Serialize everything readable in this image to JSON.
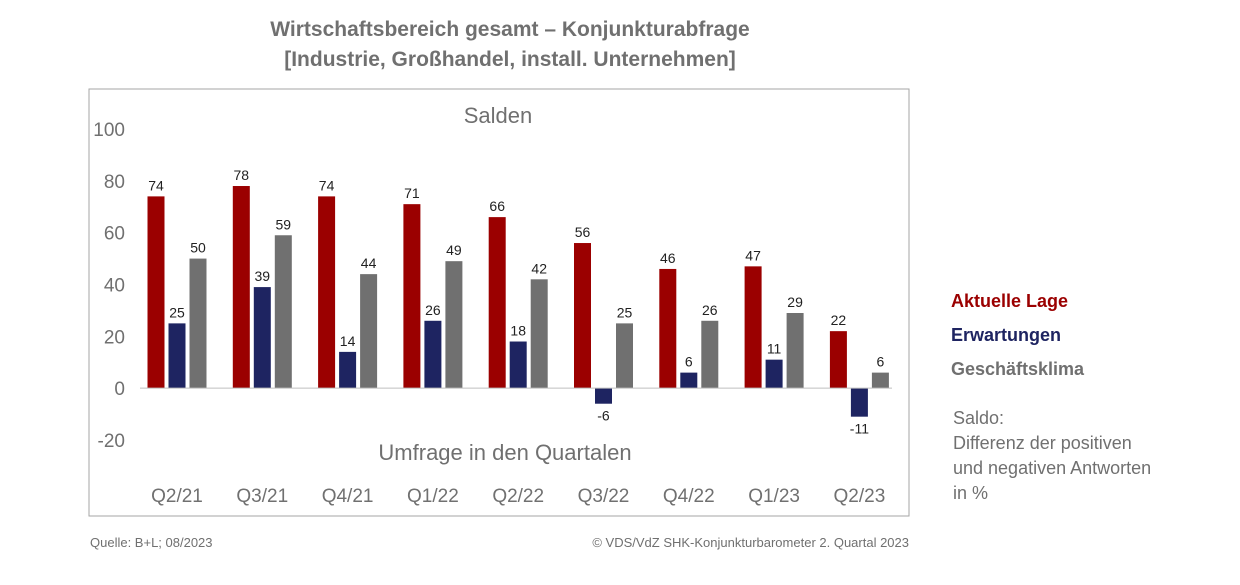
{
  "title": {
    "line1": "Wirtschaftsbereich gesamt – Konjunkturabfrage",
    "line2": "[Industrie, Großhandel, install. Unternehmen]"
  },
  "chart_data": {
    "type": "bar",
    "title": "Wirtschaftsbereich gesamt – Konjunkturabfrage [Industrie, Großhandel, install. Unternehmen]",
    "subtitle": "Salden",
    "xlabel": "Umfrage in den Quartalen",
    "ylabel": "",
    "ylim": [
      -20,
      100
    ],
    "yticks": [
      100,
      80,
      60,
      40,
      20,
      0,
      -20
    ],
    "grid": false,
    "legend_position": "right",
    "categories": [
      "Q2/21",
      "Q3/21",
      "Q4/21",
      "Q1/22",
      "Q2/22",
      "Q3/22",
      "Q4/22",
      "Q1/23",
      "Q2/23"
    ],
    "series": [
      {
        "name": "Aktuelle Lage",
        "color": "#9b0000",
        "values": [
          74,
          78,
          74,
          71,
          66,
          56,
          46,
          47,
          22
        ]
      },
      {
        "name": "Erwartungen",
        "color": "#1e2461",
        "values": [
          25,
          39,
          14,
          26,
          18,
          -6,
          6,
          11,
          -11
        ]
      },
      {
        "name": "Geschäftsklima",
        "color": "#707070",
        "values": [
          50,
          59,
          44,
          49,
          42,
          25,
          26,
          29,
          6
        ]
      }
    ]
  },
  "note": {
    "line1": "Saldo:",
    "line2": "Differenz der positiven",
    "line3": "und negativen Antworten",
    "line4": "in %"
  },
  "footer": {
    "source": "Quelle: B+L; 08/2023",
    "copyright": "© VDS/VdZ SHK-Konjunkturbarometer 2. Quartal 2023"
  }
}
